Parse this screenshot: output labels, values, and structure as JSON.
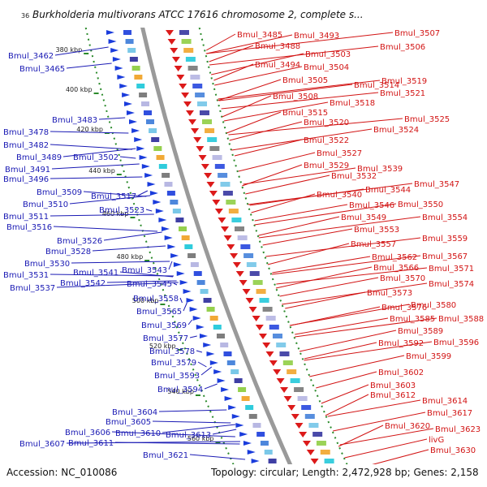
{
  "title": "Burkholderia multivorans ATCC 17616 chromosome 2, complete s...",
  "title_prefix": "36",
  "accession_text": "Accession: NC_010086",
  "topology_text": "Topology: circular; Length: 2,472,928 bp; Genes: 2,158",
  "colors": {
    "left_labels": "#1a1ab4",
    "right_labels": "#d21414",
    "backbone": "#9a9a9a",
    "dotted_ring": "#2a8a2a",
    "arrow_blue": "#1a3cdc",
    "arrow_red": "#dc1a1a"
  },
  "ticks": [
    "380 kbp",
    "400 kbp",
    "420 kbp",
    "440 kbp",
    "460 kbp",
    "480 kbp",
    "500 kbp",
    "520 kbp",
    "540 kbp",
    "560 kbp"
  ],
  "left_labels": [
    "Bmul_3462",
    "Bmul_3465",
    "Bmul_3483",
    "Bmul_3478",
    "Bmul_3482",
    "Bmul_3489",
    "Bmul_3491",
    "Bmul_3496",
    "Bmul_3502",
    "Bmul_3509",
    "Bmul_3510",
    "Bmul_3517",
    "Bmul_3511",
    "Bmul_3523",
    "Bmul_3516",
    "Bmul_3526",
    "Bmul_3528",
    "Bmul_3530",
    "Bmul_3531",
    "Bmul_3541",
    "Bmul_3543",
    "Bmul_3537",
    "Bmul_3542",
    "Bmul_3545",
    "Bmul_3558",
    "Bmul_3565",
    "Bmul_3569",
    "Bmul_3577",
    "Bmul_3578",
    "Bmul_3579",
    "Bmul_3593",
    "Bmul_3594",
    "Bmul_3604",
    "Bmul_3605",
    "Bmul_3606",
    "Bmul_3610",
    "Bmul_3613",
    "Bmul_3607",
    "Bmul_3611",
    "Bmul_3621"
  ],
  "right_labels": [
    "Bmul_3485",
    "Bmul_3493",
    "Bmul_3507",
    "Bmul_3488",
    "Bmul_3506",
    "Bmul_3503",
    "Bmul_3494",
    "Bmul_3504",
    "Bmul_3505",
    "Bmul_3514",
    "Bmul_3519",
    "Bmul_3508",
    "Bmul_3521",
    "Bmul_3518",
    "Bmul_3515",
    "Bmul_3525",
    "Bmul_3520",
    "Bmul_3524",
    "Bmul_3522",
    "Bmul_3527",
    "Bmul_3529",
    "Bmul_3539",
    "Bmul_3532",
    "Bmul_3547",
    "Bmul_3544",
    "Bmul_3540",
    "Bmul_3550",
    "Bmul_3546",
    "Bmul_3549",
    "Bmul_3554",
    "Bmul_3553",
    "Bmul_3559",
    "Bmul_3557",
    "Bmul_3562",
    "Bmul_3567",
    "Bmul_3566",
    "Bmul_3571",
    "Bmul_3570",
    "Bmul_3574",
    "Bmul_3573",
    "Bmul_3576",
    "Bmul_3580",
    "Bmul_3585",
    "Bmul_3588",
    "Bmul_3589",
    "Bmul_3592",
    "Bmul_3596",
    "Bmul_3599",
    "Bmul_3602",
    "Bmul_3603",
    "Bmul_3612",
    "Bmul_3614",
    "Bmul_3617",
    "Bmul_3620",
    "Bmul_3623",
    "livG",
    "Bmul_3630"
  ]
}
